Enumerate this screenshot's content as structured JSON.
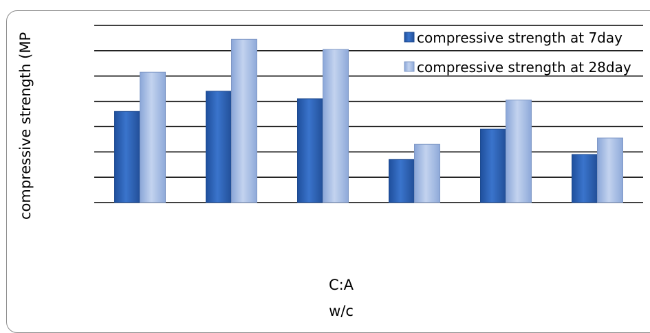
{
  "chart_data": {
    "type": "bar",
    "title": "",
    "ylabel": "compressive strength (MP",
    "xlabel_lines": [
      "C:A",
      "w/c"
    ],
    "categories": [
      "",
      "",
      "",
      "",
      "",
      ""
    ],
    "ylim": [
      0,
      7
    ],
    "grid": true,
    "legend_position": "top-right",
    "series": [
      {
        "name": "compressive strength at 7day",
        "color": "#2f63b8",
        "values": [
          3.6,
          4.4,
          4.1,
          1.7,
          2.9,
          1.9
        ]
      },
      {
        "name": "compressive strength at 28day",
        "color": "#9fb8e3",
        "values": [
          5.15,
          6.45,
          6.05,
          2.3,
          4.05,
          2.55
        ]
      }
    ]
  }
}
